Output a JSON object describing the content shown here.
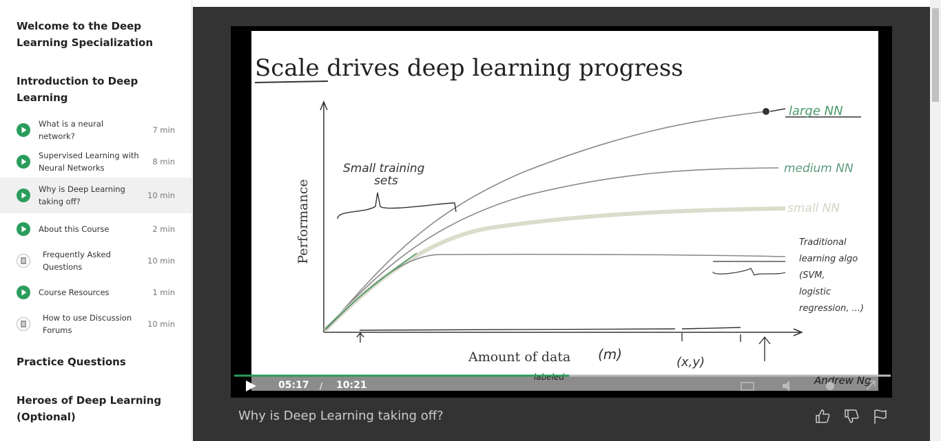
{
  "sidebar": {
    "sections": [
      {
        "title": "Welcome to the Deep Learning Specialization"
      },
      {
        "title": "Introduction to Deep Learning",
        "items": [
          {
            "title": "What is a neural network?",
            "duration": "7 min",
            "kind": "video"
          },
          {
            "title": "Supervised Learning with Neural Networks",
            "duration": "8 min",
            "kind": "video"
          },
          {
            "title": "Why is Deep Learning taking off?",
            "duration": "10 min",
            "kind": "video",
            "current": true
          },
          {
            "title": "About this Course",
            "duration": "2 min",
            "kind": "video"
          },
          {
            "title": "Frequently Asked Questions",
            "duration": "10 min",
            "kind": "reading"
          },
          {
            "title": "Course Resources",
            "duration": "1 min",
            "kind": "video"
          },
          {
            "title": "How to use Discussion Forums",
            "duration": "10 min",
            "kind": "reading"
          }
        ]
      },
      {
        "title": "Practice Questions"
      },
      {
        "title": "Heroes of Deep Learning (Optional)"
      }
    ]
  },
  "player": {
    "slide": {
      "title": "Scale drives deep learning progress",
      "y_label": "Performance",
      "x_label": "Amount of data",
      "x_symbol": "(m)",
      "curve_labels": [
        "large NN",
        "medium NN",
        "small NN"
      ],
      "traditional_label": [
        "Traditional",
        "learning algo",
        "(SVM,",
        "logistic",
        "regression, ...)"
      ],
      "region_label": [
        "Small training",
        "sets"
      ],
      "pair_label": "(x,y)",
      "pair_note": "labeled",
      "author": "Andrew Ng"
    },
    "current_time": "05:17",
    "separator": "/",
    "duration": "10:21"
  },
  "video_title": "Why is Deep Learning taking off?"
}
